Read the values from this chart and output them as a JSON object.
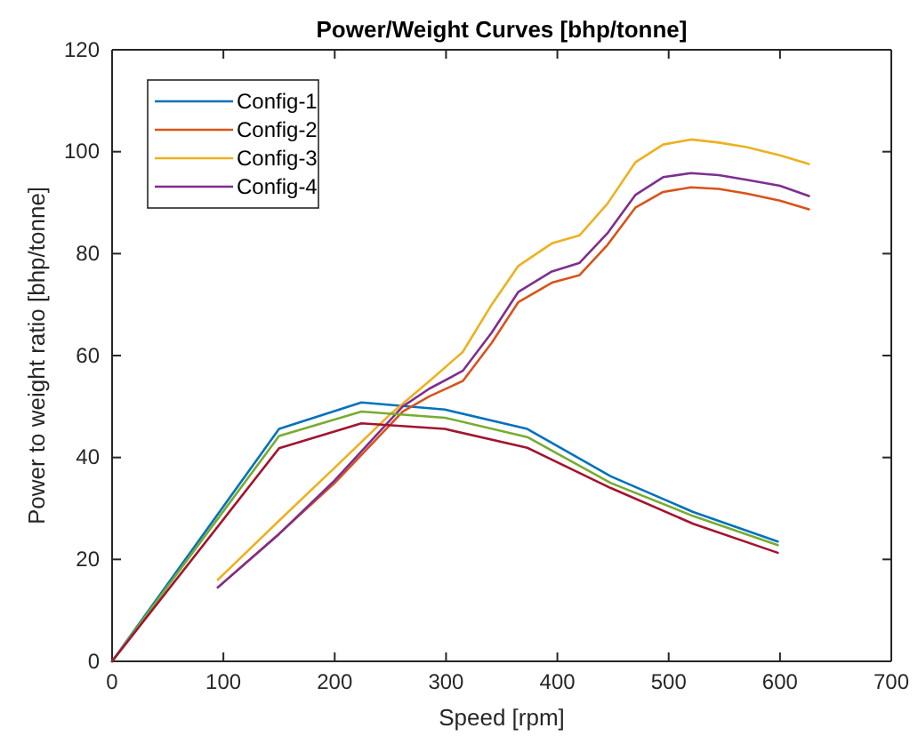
{
  "chart_data": {
    "type": "line",
    "title": "Power/Weight Curves [bhp/tonne]",
    "xlabel": "Speed [rpm]",
    "ylabel": "Power to weight ratio [bhp/tonne]",
    "xlim": [
      0,
      700
    ],
    "xticks": [
      0,
      100,
      200,
      300,
      400,
      500,
      600,
      700
    ],
    "ylim": [
      0,
      120
    ],
    "yticks": [
      0,
      20,
      40,
      60,
      80,
      100,
      120
    ],
    "grid": false,
    "legend": "top left",
    "marker": "none",
    "line_style": "solid",
    "series": [
      {
        "name": "Config-1",
        "color": "#0072bd",
        "x": [
          0,
          150,
          224,
          299,
          373,
          448,
          522,
          598
        ],
        "values": [
          0,
          45.6,
          50.8,
          49.4,
          45.6,
          36.3,
          29.3,
          23.5
        ]
      },
      {
        "name": "Config-2",
        "color": "#d95319",
        "x": [
          95,
          150,
          200,
          261,
          285,
          315,
          341,
          365,
          395,
          420,
          445,
          470,
          495,
          520,
          545,
          570,
          600,
          626
        ],
        "values": [
          14.5,
          25,
          35,
          49,
          52,
          55,
          62.5,
          70.5,
          74.3,
          75.8,
          81.7,
          89,
          92.1,
          93,
          92.7,
          91.8,
          90.4,
          88.7
        ]
      },
      {
        "name": "Config-3",
        "color": "#edb120",
        "x": [
          95,
          150,
          200,
          250,
          285,
          315,
          341,
          365,
          395,
          420,
          445,
          470,
          495,
          520,
          545,
          570,
          600,
          626
        ],
        "values": [
          16,
          27.6,
          38,
          48.5,
          55,
          60.7,
          70,
          77.6,
          82,
          83.6,
          89.8,
          97.9,
          101.4,
          102.4,
          101.8,
          100.9,
          99.3,
          97.6
        ]
      },
      {
        "name": "Config-4",
        "color": "#7e2f8e",
        "x": [
          95,
          150,
          200,
          261,
          285,
          315,
          341,
          365,
          395,
          420,
          445,
          470,
          495,
          520,
          545,
          570,
          600,
          626
        ],
        "values": [
          14.5,
          25,
          35.5,
          50,
          53.5,
          57,
          64.5,
          72.5,
          76.5,
          78.2,
          84,
          91.5,
          95,
          95.8,
          95.4,
          94.5,
          93.3,
          91.3
        ]
      },
      {
        "color": "#77ac30",
        "x": [
          0,
          150,
          224,
          299,
          373,
          448,
          522,
          598
        ],
        "values": [
          0,
          44.2,
          49,
          47.8,
          44,
          35,
          28.5,
          22.8
        ]
      },
      {
        "color": "#a2142f",
        "x": [
          0,
          150,
          224,
          299,
          373,
          448,
          522,
          598
        ],
        "values": [
          0,
          41.8,
          46.7,
          45.6,
          41.9,
          34,
          27,
          21.3
        ]
      }
    ]
  }
}
